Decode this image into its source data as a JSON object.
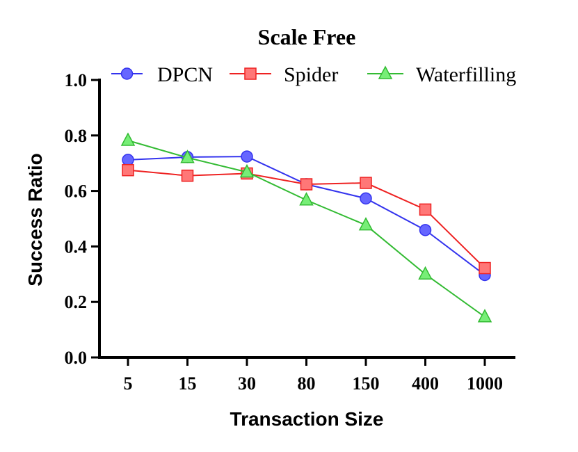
{
  "chart_data": {
    "type": "line",
    "title": "Scale Free",
    "xlabel": "Transaction Size",
    "ylabel": "Success Ratio",
    "categories": [
      "5",
      "15",
      "30",
      "80",
      "150",
      "400",
      "1000"
    ],
    "ylim": [
      0.0,
      1.0
    ],
    "yticks": [
      "0.0",
      "0.2",
      "0.4",
      "0.6",
      "0.8",
      "1.0"
    ],
    "legend_position": "top",
    "grid": false,
    "series": [
      {
        "name": "DPCN",
        "marker": "circle",
        "color": "#3333ee",
        "fill": "#6666ff",
        "values": [
          0.712,
          0.722,
          0.724,
          0.624,
          0.573,
          0.459,
          0.297
        ]
      },
      {
        "name": "Spider",
        "marker": "square",
        "color": "#ee2222",
        "fill": "#ff7777",
        "values": [
          0.675,
          0.655,
          0.663,
          0.624,
          0.629,
          0.533,
          0.322
        ]
      },
      {
        "name": "Waterfilling",
        "marker": "triangle",
        "color": "#33bb33",
        "fill": "#77ee77",
        "values": [
          0.782,
          0.72,
          0.668,
          0.567,
          0.477,
          0.3,
          0.146
        ]
      }
    ]
  }
}
